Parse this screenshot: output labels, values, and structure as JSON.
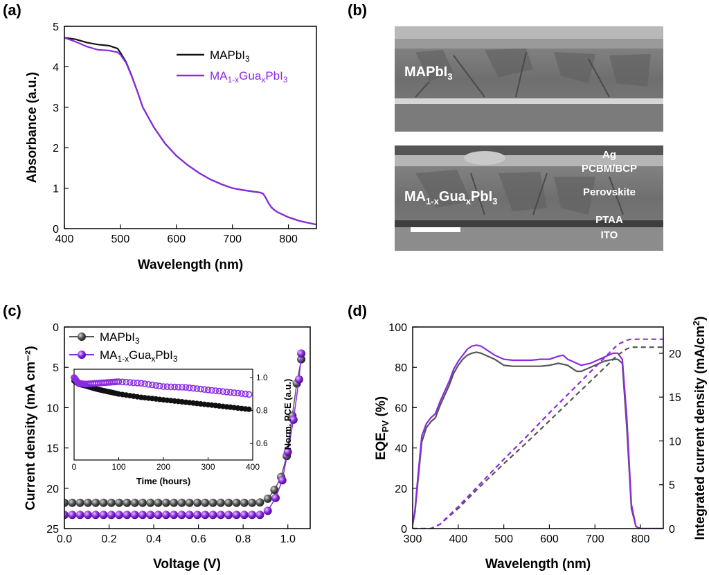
{
  "colors": {
    "mapbi3": "#111111",
    "gua": "#8a2be2",
    "mapbi3_jv": "#555555"
  },
  "panels": {
    "a": {
      "label": "(a)"
    },
    "b": {
      "label": "(b)",
      "top_label_main": "MAPbI",
      "top_label_sub": "3",
      "bottom_label_p1": "MA",
      "bottom_label_s1": "1-x",
      "bottom_label_p2": "Gua",
      "bottom_label_s2": "x",
      "bottom_label_p3": "PbI",
      "bottom_label_s3": "3",
      "layers": {
        "ag": "Ag",
        "pcbm": "PCBM/BCP",
        "perovskite": "Perovskite",
        "ptaa": "PTAA",
        "ito": "ITO"
      }
    },
    "c": {
      "label": "(c)"
    },
    "d": {
      "label": "(d)"
    }
  },
  "chart_data": [
    {
      "panel": "a",
      "type": "line",
      "xlabel": "Wavelength (nm)",
      "ylabel": "Absorbance (a.u.)",
      "xlim": [
        400,
        850
      ],
      "ylim": [
        0,
        5
      ],
      "xticks": [
        400,
        500,
        600,
        700,
        800
      ],
      "yticks": [
        0,
        1,
        2,
        3,
        4,
        5
      ],
      "legend": "top-right",
      "series": [
        {
          "name_main": "MAPbI",
          "name_sub": "3",
          "color": "#111111",
          "x": [
            400,
            420,
            440,
            460,
            480,
            495,
            500,
            510,
            520,
            530,
            540,
            560,
            580,
            600,
            620,
            640,
            660,
            680,
            700,
            720,
            740,
            750,
            755,
            760,
            765,
            770,
            775,
            780,
            800,
            820,
            850
          ],
          "y": [
            4.72,
            4.68,
            4.6,
            4.55,
            4.52,
            4.45,
            4.35,
            4.12,
            3.78,
            3.4,
            3.0,
            2.5,
            2.1,
            1.8,
            1.57,
            1.38,
            1.22,
            1.1,
            1.0,
            0.95,
            0.91,
            0.89,
            0.86,
            0.75,
            0.62,
            0.52,
            0.46,
            0.41,
            0.28,
            0.19,
            0.1
          ]
        },
        {
          "name_p1": "MA",
          "name_s1": "1-x",
          "name_p2": "Gua",
          "name_s2": "x",
          "name_p3": "PbI",
          "name_s3": "3",
          "color": "#8a2be2",
          "x": [
            400,
            420,
            440,
            460,
            480,
            495,
            500,
            510,
            520,
            530,
            540,
            560,
            580,
            600,
            620,
            640,
            660,
            680,
            700,
            720,
            740,
            750,
            755,
            760,
            765,
            770,
            775,
            780,
            800,
            820,
            850
          ],
          "y": [
            4.72,
            4.62,
            4.5,
            4.42,
            4.4,
            4.36,
            4.3,
            4.1,
            3.77,
            3.4,
            3.0,
            2.5,
            2.1,
            1.8,
            1.57,
            1.38,
            1.22,
            1.1,
            1.0,
            0.95,
            0.91,
            0.89,
            0.86,
            0.75,
            0.62,
            0.52,
            0.46,
            0.41,
            0.28,
            0.19,
            0.1
          ]
        }
      ]
    },
    {
      "panel": "c",
      "type": "scatter",
      "xlabel": "Voltage (V)",
      "ylabel": "Current density (mA cm⁻²)",
      "xlim": [
        0,
        1.1
      ],
      "ylim": [
        25,
        0
      ],
      "xticks": [
        0.0,
        0.2,
        0.4,
        0.6,
        0.8,
        1.0
      ],
      "yticks": [
        0,
        5,
        10,
        15,
        20,
        25
      ],
      "legend": "top-left",
      "series": [
        {
          "name_main": "MAPbI",
          "name_sub": "3",
          "color": "#555555",
          "x": [
            0,
            0.035,
            0.07,
            0.105,
            0.14,
            0.175,
            0.21,
            0.245,
            0.28,
            0.315,
            0.35,
            0.385,
            0.42,
            0.455,
            0.49,
            0.525,
            0.56,
            0.595,
            0.63,
            0.665,
            0.7,
            0.735,
            0.77,
            0.805,
            0.84,
            0.875,
            0.91,
            0.94,
            0.97,
            0.995,
            1.02,
            1.04,
            1.06
          ],
          "y": [
            21.8,
            21.8,
            21.8,
            21.8,
            21.8,
            21.8,
            21.8,
            21.8,
            21.8,
            21.8,
            21.8,
            21.8,
            21.8,
            21.8,
            21.8,
            21.8,
            21.8,
            21.8,
            21.8,
            21.8,
            21.8,
            21.8,
            21.8,
            21.8,
            21.8,
            21.75,
            21.3,
            20.2,
            18.6,
            16.0,
            11.0,
            7.0,
            4.0
          ]
        },
        {
          "name_p1": "MA",
          "name_s1": "1-x",
          "name_p2": "Gua",
          "name_s2": "x",
          "name_p3": "PbI",
          "name_s3": "3",
          "color": "#8a2be2",
          "x": [
            0,
            0.035,
            0.07,
            0.105,
            0.14,
            0.175,
            0.21,
            0.245,
            0.28,
            0.315,
            0.35,
            0.385,
            0.42,
            0.455,
            0.49,
            0.525,
            0.56,
            0.595,
            0.63,
            0.665,
            0.7,
            0.735,
            0.77,
            0.805,
            0.84,
            0.875,
            0.91,
            0.945,
            0.975,
            1.0,
            1.025,
            1.05,
            1.06
          ],
          "y": [
            23.3,
            23.3,
            23.3,
            23.3,
            23.3,
            23.3,
            23.3,
            23.3,
            23.3,
            23.3,
            23.3,
            23.3,
            23.3,
            23.3,
            23.3,
            23.3,
            23.3,
            23.3,
            23.3,
            23.3,
            23.3,
            23.3,
            23.3,
            23.3,
            23.3,
            23.3,
            22.8,
            21.2,
            19.0,
            15.5,
            11.5,
            6.5,
            3.3
          ]
        }
      ],
      "inset": {
        "type": "scatter",
        "xlabel": "Time (hours)",
        "ylabel": "Norm. PCE (a.u.)",
        "xlim": [
          0,
          400
        ],
        "ylim": [
          0.5,
          1.05
        ],
        "xticks": [
          0,
          100,
          200,
          300,
          400
        ],
        "yticks": [
          0.6,
          0.8,
          1.0
        ],
        "series": [
          {
            "color": "#111111",
            "x": [
              0,
              10,
              25,
              50,
              75,
              100,
              150,
              200,
              250,
              300,
              350,
              400
            ],
            "y": [
              0.98,
              0.96,
              0.95,
              0.93,
              0.915,
              0.9,
              0.88,
              0.865,
              0.85,
              0.835,
              0.82,
              0.805
            ]
          },
          {
            "color": "#8a2be2",
            "x": [
              0,
              10,
              25,
              50,
              75,
              100,
              150,
              200,
              250,
              300,
              350,
              400
            ],
            "y": [
              1.0,
              0.965,
              0.96,
              0.965,
              0.97,
              0.975,
              0.965,
              0.945,
              0.94,
              0.925,
              0.91,
              0.895
            ]
          }
        ]
      }
    },
    {
      "panel": "d",
      "type": "line",
      "xlabel": "Wavelength (nm)",
      "ylabel_main": "EQE",
      "ylabel_sub": "PV",
      "ylabel_unit": " (%)",
      "y2label_main": "Integrated current density (mA/cm",
      "y2label_sup": "2",
      "y2label_end": ")",
      "xlim": [
        300,
        850
      ],
      "ylim": [
        0,
        100
      ],
      "y2lim": [
        0,
        23
      ],
      "xticks": [
        300,
        400,
        500,
        600,
        700,
        800
      ],
      "yticks": [
        0,
        20,
        40,
        60,
        80,
        100
      ],
      "y2ticks": [
        0,
        5,
        10,
        15,
        20
      ],
      "series": [
        {
          "color": "#555555",
          "axis": "left",
          "style": "solid",
          "x": [
            300,
            305,
            310,
            320,
            330,
            340,
            350,
            360,
            370,
            380,
            390,
            400,
            410,
            420,
            430,
            440,
            450,
            460,
            480,
            500,
            520,
            540,
            560,
            580,
            600,
            620,
            640,
            660,
            670,
            680,
            690,
            700,
            720,
            740,
            750,
            760,
            770,
            780,
            790,
            800,
            820,
            850
          ],
          "y": [
            2,
            8,
            20,
            43,
            50,
            53,
            55,
            61,
            66,
            71,
            77,
            81,
            84,
            86,
            87,
            87.5,
            87,
            86,
            84,
            81,
            80.5,
            80.5,
            80.5,
            80.5,
            81,
            82,
            81,
            78,
            78,
            79,
            80,
            81,
            83,
            84,
            84,
            82,
            50,
            10,
            1,
            0,
            0,
            0
          ]
        },
        {
          "color": "#8a2be2",
          "axis": "left",
          "style": "solid",
          "x": [
            300,
            305,
            310,
            320,
            330,
            340,
            350,
            360,
            370,
            380,
            390,
            400,
            410,
            420,
            430,
            440,
            450,
            460,
            480,
            500,
            520,
            540,
            560,
            580,
            600,
            620,
            630,
            640,
            660,
            670,
            680,
            690,
            700,
            720,
            740,
            750,
            760,
            770,
            780,
            790,
            800,
            820,
            850
          ],
          "y": [
            2,
            9,
            22,
            46,
            52,
            55,
            57,
            63,
            68,
            73,
            79,
            83,
            86,
            89,
            90.5,
            91,
            90.5,
            89,
            86,
            84,
            83.5,
            83.5,
            83.5,
            84,
            84,
            85.5,
            86,
            84,
            82,
            81,
            81.5,
            82,
            83,
            85,
            87,
            87,
            84,
            55,
            12,
            1,
            0,
            0,
            0
          ]
        },
        {
          "color": "#555555",
          "axis": "right",
          "style": "dashed",
          "x": [
            300,
            340,
            360,
            400,
            450,
            500,
            550,
            600,
            650,
            700,
            750,
            770,
            780,
            800,
            850
          ],
          "y": [
            0,
            0,
            0.5,
            2.3,
            4.9,
            7.4,
            9.8,
            12.3,
            14.8,
            17.3,
            19.8,
            20.5,
            20.7,
            20.7,
            20.7
          ]
        },
        {
          "color": "#8a2be2",
          "axis": "right",
          "style": "dashed",
          "x": [
            300,
            340,
            360,
            400,
            450,
            500,
            550,
            600,
            650,
            700,
            750,
            770,
            780,
            800,
            850
          ],
          "y": [
            0,
            0,
            0.5,
            2.5,
            5.2,
            7.9,
            10.5,
            13.2,
            15.8,
            18.4,
            21.0,
            21.5,
            21.6,
            21.6,
            21.6
          ]
        }
      ]
    }
  ]
}
